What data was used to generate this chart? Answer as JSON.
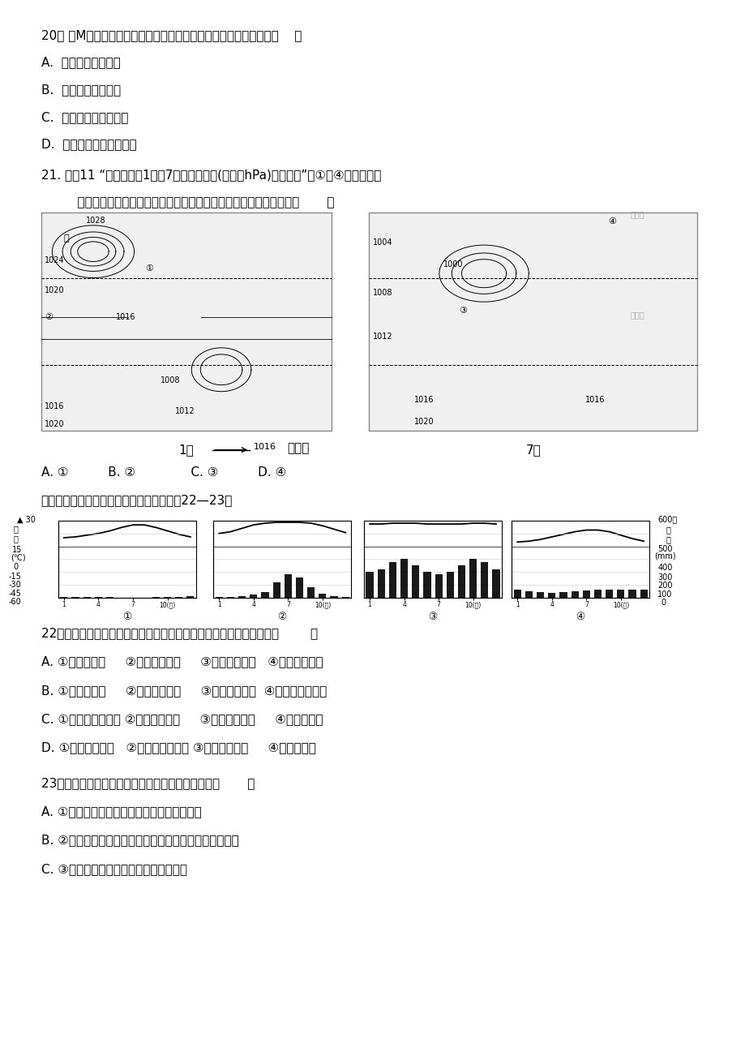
{
  "bg_color": "#ffffff",
  "page_width": 9.2,
  "page_height": 13.02,
  "q20": "20、 当M地月平均气压为全年最高的月份，可能出现的地理现象是（    ）",
  "q20a": "A.  巴西高原处于干季",
  "q20b": "B.  尼罗河进入丰水期",
  "q20c": "C.  美国大平原麦收正忙",
  "q20d": "D.  我国东北地区寒冷干燥",
  "q21_line1": "21. 读图11 “世界某区坘1月和7月海平面气压(单位：hPa)和风向图”，①～④处的箭头表",
  "q21_line2": "    示风向，从季风的形成原因看，与气压带、风带季节移动有关的是（       ）",
  "q21_ans": "A. ①          B. ②              C. ③          D. ④",
  "intro_22_23": "读下面气候降水量和气温月份分配图，回筂22—23题",
  "q22": "22、指出下列四组中气候类型判断正确，且排序和图中顺序相符的是（        ）",
  "q22a": "A. ①地中海气候     ②热带草原气候     ③热带季风气候   ④温带海洋气候",
  "q22b": "B. ①地中海气候     ②温带海洋气候     ③热带雨林气候  ④亚热带季风气候",
  "q22c": "C. ①温带海洋性气候 ②热带季风气候     ③热带雨林气候     ④地中海气候",
  "q22d": "D. ①温带季风气候   ②温带海洋性气候 ③热带雨林气候     ④地中海气候",
  "q23": "23、关于四种气候类型成因及特点的叙述正确的是（       ）",
  "q23a": "A. ①气候类型全年受西风控制，全年温和多雨",
  "q23b": "B. ②气候类型全年受赤道低压控制，全年多雨，降水平均",
  "q23c": "C. ③气候类型夏季受副高控制，降水较少",
  "chart1_temp": [
    10,
    11,
    13,
    15,
    18,
    22,
    25,
    25,
    22,
    18,
    14,
    11
  ],
  "chart1_precip": [
    8,
    6,
    5,
    4,
    3,
    2,
    1,
    2,
    3,
    6,
    8,
    10
  ],
  "chart2_temp": [
    15,
    17,
    21,
    25,
    27,
    28,
    28,
    28,
    27,
    24,
    20,
    16
  ],
  "chart2_precip": [
    5,
    8,
    15,
    25,
    45,
    120,
    180,
    160,
    80,
    30,
    10,
    5
  ],
  "chart3_temp": [
    26,
    26,
    27,
    27,
    27,
    26,
    26,
    26,
    26,
    27,
    27,
    26
  ],
  "chart3_precip": [
    200,
    220,
    280,
    300,
    250,
    200,
    180,
    200,
    250,
    300,
    280,
    220
  ],
  "chart4_temp": [
    5,
    6,
    8,
    11,
    14,
    17,
    19,
    19,
    17,
    13,
    9,
    6
  ],
  "chart4_precip": [
    60,
    50,
    45,
    40,
    45,
    50,
    55,
    60,
    60,
    65,
    65,
    65
  ]
}
